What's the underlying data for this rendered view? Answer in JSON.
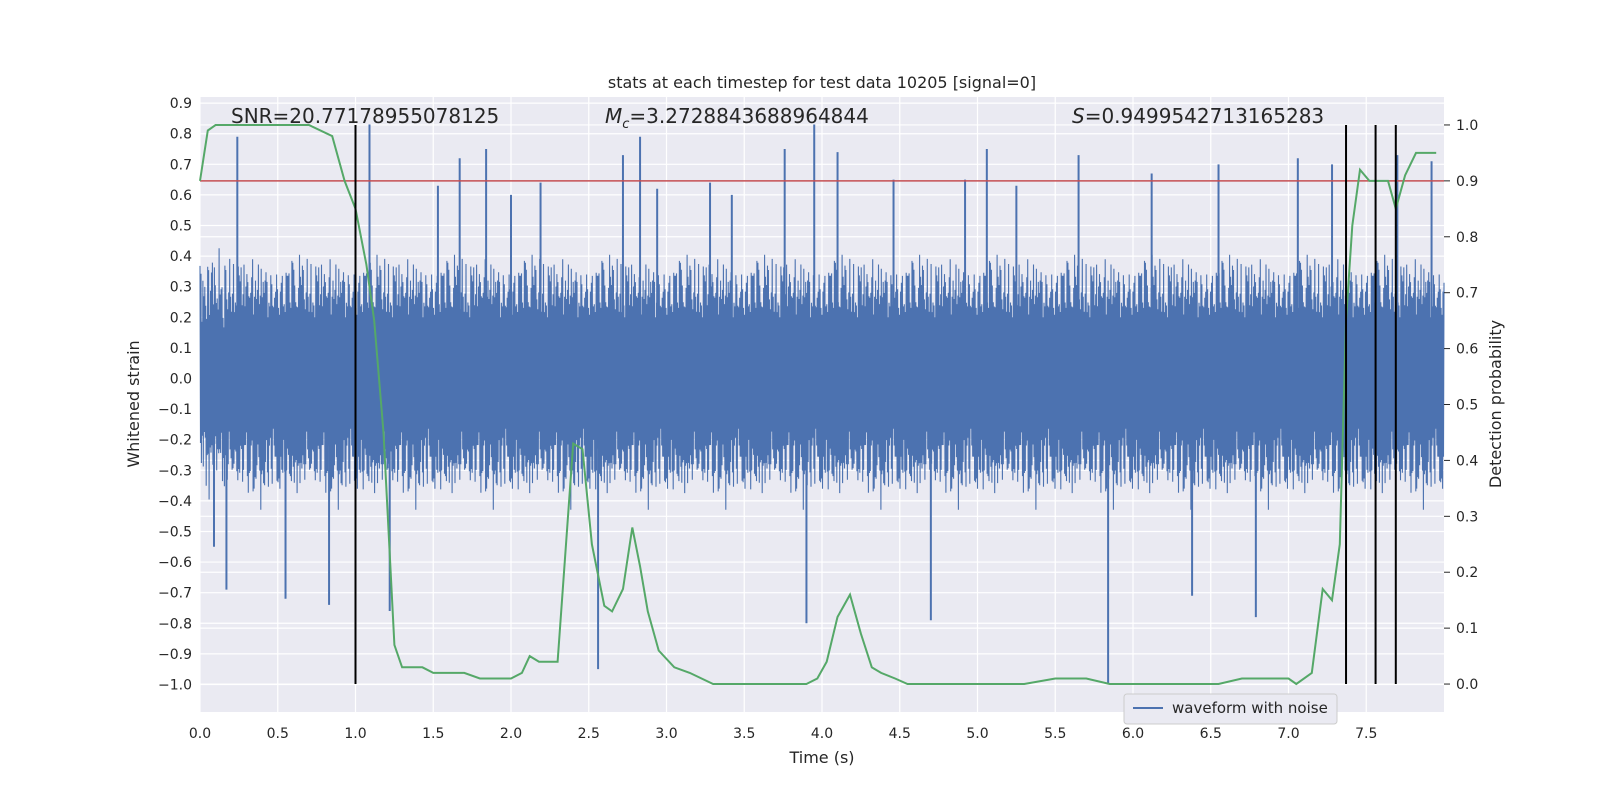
{
  "chart_data": {
    "type": "line",
    "title": "stats at each timestep for test data 10205 [signal=0]",
    "xlabel": "Time (s)",
    "ylabel_left": "Whitened strain",
    "ylabel_right": "Detection probability",
    "xlim": [
      0.0,
      8.0
    ],
    "ylim_left": [
      -1.09,
      0.92
    ],
    "ylim_right": [
      -0.05,
      1.05
    ],
    "xticks": [
      0.0,
      0.5,
      1.0,
      1.5,
      2.0,
      2.5,
      3.0,
      3.5,
      4.0,
      4.5,
      5.0,
      5.5,
      6.0,
      6.5,
      7.0,
      7.5
    ],
    "xtick_labels": [
      "0.0",
      "0.5",
      "1.0",
      "1.5",
      "2.0",
      "2.5",
      "3.0",
      "3.5",
      "4.0",
      "4.5",
      "5.0",
      "5.5",
      "6.0",
      "6.5",
      "7.0",
      "7.5"
    ],
    "yticks_left": [
      0.9,
      0.8,
      0.7,
      0.6,
      0.5,
      0.4,
      0.3,
      0.2,
      0.1,
      0.0,
      -0.1,
      -0.2,
      -0.3,
      -0.4,
      -0.5,
      -0.6,
      -0.7,
      -0.8,
      -0.9,
      -1.0
    ],
    "ytick_labels_left": [
      "0.9",
      "0.8",
      "0.7",
      "0.6",
      "0.5",
      "0.4",
      "0.3",
      "0.2",
      "0.1",
      "0.0",
      "−0.1",
      "−0.2",
      "−0.3",
      "−0.4",
      "−0.5",
      "−0.6",
      "−0.7",
      "−0.8",
      "−0.9",
      "−1.0"
    ],
    "yticks_right": [
      1.0,
      0.9,
      0.8,
      0.7,
      0.6,
      0.5,
      0.4,
      0.3,
      0.2,
      0.1,
      0.0
    ],
    "ytick_labels_right": [
      "1.0",
      "0.9",
      "0.8",
      "0.7",
      "0.6",
      "0.5",
      "0.4",
      "0.3",
      "0.2",
      "0.1",
      "0.0"
    ],
    "annotations": {
      "snr": "SNR=20.77178955078125",
      "mc_symbol": "M",
      "mc_sub": "c",
      "mc_value": "=3.2728843688964844",
      "s_symbol": "S",
      "s_value": "=0.9499542713165283"
    },
    "threshold_line": {
      "axis": "right",
      "value": 0.9,
      "color": "#c44e52"
    },
    "vertical_lines": [
      1.0,
      7.37,
      7.56,
      7.69
    ],
    "vertical_line_range_right": [
      0.0,
      1.0
    ],
    "series": [
      {
        "name": "waveform with noise",
        "axis": "left",
        "color": "#4c72b0",
        "kind": "noise",
        "typical_range": [
          -0.45,
          0.45
        ],
        "spikes": [
          {
            "x": 0.24,
            "y": 0.79
          },
          {
            "x": 0.09,
            "y": -0.55
          },
          {
            "x": 0.17,
            "y": -0.69
          },
          {
            "x": 0.55,
            "y": -0.72
          },
          {
            "x": 0.83,
            "y": -0.74
          },
          {
            "x": 1.09,
            "y": 0.83
          },
          {
            "x": 1.22,
            "y": -0.76
          },
          {
            "x": 1.53,
            "y": 0.63
          },
          {
            "x": 1.67,
            "y": 0.72
          },
          {
            "x": 1.84,
            "y": 0.75
          },
          {
            "x": 2.0,
            "y": 0.6
          },
          {
            "x": 2.19,
            "y": 0.64
          },
          {
            "x": 2.56,
            "y": -0.95
          },
          {
            "x": 2.72,
            "y": 0.73
          },
          {
            "x": 2.83,
            "y": 0.79
          },
          {
            "x": 2.94,
            "y": 0.62
          },
          {
            "x": 3.28,
            "y": 0.64
          },
          {
            "x": 3.42,
            "y": 0.6
          },
          {
            "x": 3.76,
            "y": 0.75
          },
          {
            "x": 3.9,
            "y": -0.8
          },
          {
            "x": 3.95,
            "y": 0.83
          },
          {
            "x": 4.1,
            "y": 0.74
          },
          {
            "x": 4.46,
            "y": 0.65
          },
          {
            "x": 4.7,
            "y": -0.79
          },
          {
            "x": 4.92,
            "y": 0.65
          },
          {
            "x": 5.06,
            "y": 0.75
          },
          {
            "x": 5.25,
            "y": 0.63
          },
          {
            "x": 5.65,
            "y": 0.73
          },
          {
            "x": 5.84,
            "y": -1.0
          },
          {
            "x": 6.12,
            "y": 0.67
          },
          {
            "x": 6.38,
            "y": -0.71
          },
          {
            "x": 6.55,
            "y": 0.7
          },
          {
            "x": 6.79,
            "y": -0.78
          },
          {
            "x": 7.06,
            "y": 0.72
          },
          {
            "x": 7.28,
            "y": 0.7
          },
          {
            "x": 7.7,
            "y": 0.73
          },
          {
            "x": 7.92,
            "y": 0.71
          }
        ]
      },
      {
        "name": "detection probability",
        "axis": "right",
        "color": "#55a868",
        "x": [
          0.0,
          0.05,
          0.1,
          0.15,
          0.3,
          0.5,
          0.7,
          0.85,
          0.93,
          1.0,
          1.07,
          1.12,
          1.18,
          1.25,
          1.3,
          1.37,
          1.43,
          1.5,
          1.6,
          1.7,
          1.8,
          1.9,
          2.0,
          2.07,
          2.12,
          2.18,
          2.3,
          2.4,
          2.46,
          2.52,
          2.6,
          2.65,
          2.72,
          2.78,
          2.83,
          2.88,
          2.95,
          3.05,
          3.15,
          3.3,
          3.5,
          3.7,
          3.9,
          3.97,
          4.03,
          4.1,
          4.18,
          4.25,
          4.32,
          4.38,
          4.47,
          4.55,
          4.7,
          5.0,
          5.3,
          5.5,
          5.55,
          5.7,
          5.85,
          6.0,
          6.1,
          6.3,
          6.45,
          6.55,
          6.7,
          6.85,
          7.0,
          7.05,
          7.15,
          7.22,
          7.28,
          7.33,
          7.37,
          7.41,
          7.46,
          7.52,
          7.58,
          7.64,
          7.69,
          7.75,
          7.82,
          7.88,
          7.95
        ],
        "y": [
          0.9,
          0.99,
          1.0,
          1.0,
          1.0,
          1.0,
          1.0,
          0.98,
          0.9,
          0.85,
          0.75,
          0.65,
          0.45,
          0.07,
          0.03,
          0.03,
          0.03,
          0.02,
          0.02,
          0.02,
          0.01,
          0.01,
          0.01,
          0.02,
          0.05,
          0.04,
          0.04,
          0.43,
          0.42,
          0.25,
          0.14,
          0.13,
          0.17,
          0.28,
          0.21,
          0.13,
          0.06,
          0.03,
          0.02,
          0.0,
          0.0,
          0.0,
          0.0,
          0.01,
          0.04,
          0.12,
          0.16,
          0.09,
          0.03,
          0.02,
          0.01,
          0.0,
          0.0,
          0.0,
          0.0,
          0.01,
          0.01,
          0.01,
          0.0,
          0.0,
          0.0,
          0.0,
          0.0,
          0.0,
          0.01,
          0.01,
          0.01,
          0.0,
          0.02,
          0.17,
          0.15,
          0.25,
          0.65,
          0.82,
          0.92,
          0.9,
          0.9,
          0.9,
          0.85,
          0.91,
          0.95,
          0.95,
          0.95
        ]
      }
    ],
    "legend": {
      "entries": [
        "waveform with noise"
      ],
      "placement": "lower-right"
    }
  }
}
